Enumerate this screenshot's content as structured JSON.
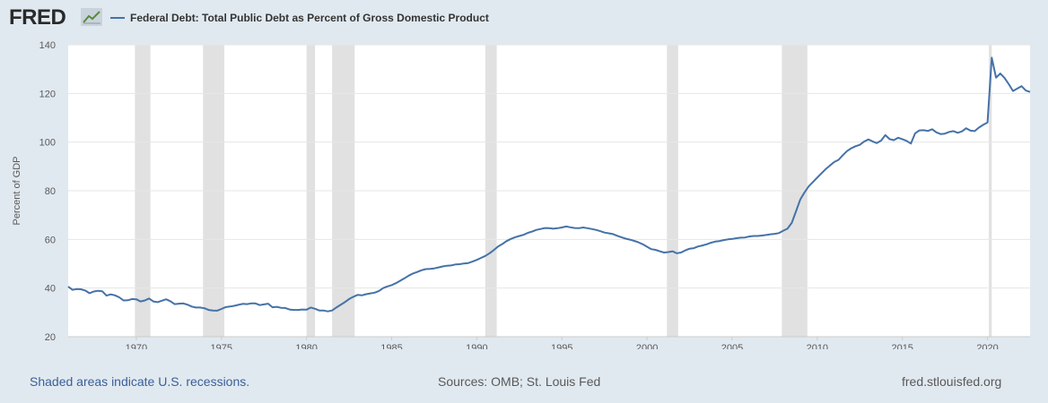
{
  "header": {
    "logo_text": "FRED",
    "logo_icon": "fred-trend-line-icon"
  },
  "chart_data": {
    "type": "line",
    "title": "",
    "xlabel": "",
    "ylabel": "Percent of GDP",
    "ylim": [
      20,
      140
    ],
    "xlim": [
      1966.0,
      2022.5
    ],
    "yticks": [
      20,
      40,
      60,
      80,
      100,
      120,
      140
    ],
    "xticks": [
      1970,
      1975,
      1980,
      1985,
      1990,
      1995,
      2000,
      2005,
      2010,
      2015,
      2020
    ],
    "grid": "horizontal",
    "legend_position": "top-left",
    "colors": {
      "line": "#4572a7",
      "recession": "#e1e1e1",
      "grid": "#e6e6e6",
      "plot_background": "#ffffff",
      "text": "#595959"
    },
    "recessions": [
      [
        1969.92,
        1970.83
      ],
      [
        1973.92,
        1975.17
      ],
      [
        1980.0,
        1980.5
      ],
      [
        1981.5,
        1982.83
      ],
      [
        1990.5,
        1991.17
      ],
      [
        2001.17,
        2001.83
      ],
      [
        2007.92,
        2009.42
      ],
      [
        2020.08,
        2020.25
      ]
    ],
    "series": [
      {
        "name": "Federal Debt: Total Public Debt as Percent of Gross Domestic Product",
        "x": [
          1966.0,
          1966.25,
          1966.5,
          1966.75,
          1967.0,
          1967.25,
          1967.5,
          1967.75,
          1968.0,
          1968.25,
          1968.5,
          1968.75,
          1969.0,
          1969.25,
          1969.5,
          1969.75,
          1970.0,
          1970.25,
          1970.5,
          1970.75,
          1971.0,
          1971.25,
          1971.5,
          1971.75,
          1972.0,
          1972.25,
          1972.5,
          1972.75,
          1973.0,
          1973.25,
          1973.5,
          1973.75,
          1974.0,
          1974.25,
          1974.5,
          1974.75,
          1975.0,
          1975.25,
          1975.5,
          1975.75,
          1976.0,
          1976.25,
          1976.5,
          1976.75,
          1977.0,
          1977.25,
          1977.5,
          1977.75,
          1978.0,
          1978.25,
          1978.5,
          1978.75,
          1979.0,
          1979.25,
          1979.5,
          1979.75,
          1980.0,
          1980.25,
          1980.5,
          1980.75,
          1981.0,
          1981.25,
          1981.5,
          1981.75,
          1982.0,
          1982.25,
          1982.5,
          1982.75,
          1983.0,
          1983.25,
          1983.5,
          1983.75,
          1984.0,
          1984.25,
          1984.5,
          1984.75,
          1985.0,
          1985.25,
          1985.5,
          1985.75,
          1986.0,
          1986.25,
          1986.5,
          1986.75,
          1987.0,
          1987.25,
          1987.5,
          1987.75,
          1988.0,
          1988.25,
          1988.5,
          1988.75,
          1989.0,
          1989.25,
          1989.5,
          1989.75,
          1990.0,
          1990.25,
          1990.5,
          1990.75,
          1991.0,
          1991.25,
          1991.5,
          1991.75,
          1992.0,
          1992.25,
          1992.5,
          1992.75,
          1993.0,
          1993.25,
          1993.5,
          1993.75,
          1994.0,
          1994.25,
          1994.5,
          1994.75,
          1995.0,
          1995.25,
          1995.5,
          1995.75,
          1996.0,
          1996.25,
          1996.5,
          1996.75,
          1997.0,
          1997.25,
          1997.5,
          1997.75,
          1998.0,
          1998.25,
          1998.5,
          1998.75,
          1999.0,
          1999.25,
          1999.5,
          1999.75,
          2000.0,
          2000.25,
          2000.5,
          2000.75,
          2001.0,
          2001.25,
          2001.5,
          2001.75,
          2002.0,
          2002.25,
          2002.5,
          2002.75,
          2003.0,
          2003.25,
          2003.5,
          2003.75,
          2004.0,
          2004.25,
          2004.5,
          2004.75,
          2005.0,
          2005.25,
          2005.5,
          2005.75,
          2006.0,
          2006.25,
          2006.5,
          2006.75,
          2007.0,
          2007.25,
          2007.5,
          2007.75,
          2008.0,
          2008.25,
          2008.5,
          2008.75,
          2009.0,
          2009.25,
          2009.5,
          2009.75,
          2010.0,
          2010.25,
          2010.5,
          2010.75,
          2011.0,
          2011.25,
          2011.5,
          2011.75,
          2012.0,
          2012.25,
          2012.5,
          2012.75,
          2013.0,
          2013.25,
          2013.5,
          2013.75,
          2014.0,
          2014.25,
          2014.5,
          2014.75,
          2015.0,
          2015.25,
          2015.5,
          2015.75,
          2016.0,
          2016.25,
          2016.5,
          2016.75,
          2017.0,
          2017.25,
          2017.5,
          2017.75,
          2018.0,
          2018.25,
          2018.5,
          2018.75,
          2019.0,
          2019.25,
          2019.5,
          2019.75,
          2020.0,
          2020.25,
          2020.5,
          2020.75,
          2021.0,
          2021.25,
          2021.5,
          2021.75,
          2022.0,
          2022.25,
          2022.5
        ],
        "values": [
          40.6,
          39.3,
          39.6,
          39.5,
          39.0,
          37.9,
          38.6,
          38.9,
          38.7,
          36.9,
          37.4,
          37.0,
          36.2,
          34.9,
          35.0,
          35.5,
          35.4,
          34.5,
          34.9,
          35.7,
          34.5,
          34.2,
          34.8,
          35.4,
          34.6,
          33.4,
          33.6,
          33.7,
          33.2,
          32.4,
          32.0,
          32.0,
          31.7,
          31.0,
          30.8,
          30.7,
          31.4,
          32.2,
          32.4,
          32.7,
          33.1,
          33.5,
          33.4,
          33.7,
          33.7,
          33.0,
          33.3,
          33.6,
          32.1,
          32.3,
          31.9,
          31.8,
          31.2,
          31.0,
          31.0,
          31.2,
          31.1,
          32.0,
          31.5,
          30.8,
          30.8,
          30.4,
          30.8,
          32.0,
          33.1,
          34.2,
          35.5,
          36.4,
          37.2,
          37.0,
          37.5,
          37.8,
          38.1,
          38.8,
          40.0,
          40.7,
          41.2,
          42.0,
          43.0,
          44.0,
          45.1,
          46.0,
          46.6,
          47.3,
          47.8,
          47.9,
          48.1,
          48.5,
          48.9,
          49.2,
          49.3,
          49.7,
          49.8,
          50.1,
          50.3,
          50.9,
          51.6,
          52.4,
          53.2,
          54.3,
          55.6,
          57.1,
          58.1,
          59.3,
          60.2,
          60.9,
          61.4,
          61.9,
          62.7,
          63.2,
          63.9,
          64.3,
          64.7,
          64.6,
          64.4,
          64.6,
          64.9,
          65.3,
          65.0,
          64.7,
          64.6,
          64.9,
          64.6,
          64.3,
          63.9,
          63.4,
          62.8,
          62.5,
          62.2,
          61.5,
          60.9,
          60.3,
          59.9,
          59.4,
          58.8,
          58.0,
          57.0,
          56.0,
          55.7,
          55.1,
          54.6,
          54.8,
          55.1,
          54.3,
          54.6,
          55.5,
          56.2,
          56.4,
          57.1,
          57.5,
          58.0,
          58.6,
          59.1,
          59.3,
          59.7,
          60.0,
          60.2,
          60.5,
          60.7,
          60.8,
          61.2,
          61.4,
          61.4,
          61.6,
          61.8,
          62.1,
          62.3,
          62.6,
          63.6,
          64.4,
          66.8,
          71.5,
          76.4,
          79.3,
          81.8,
          83.6,
          85.4,
          87.2,
          88.9,
          90.4,
          91.8,
          92.7,
          94.6,
          96.3,
          97.5,
          98.3,
          98.9,
          100.2,
          101.1,
          100.3,
          99.6,
          100.6,
          102.9,
          101.2,
          100.8,
          101.8,
          101.2,
          100.5,
          99.4,
          103.6,
          104.8,
          104.9,
          104.6,
          105.3,
          104.0,
          103.3,
          103.5,
          104.2,
          104.5,
          103.8,
          104.4,
          105.7,
          104.7,
          104.5,
          106.0,
          107.1,
          108.1,
          134.7,
          126.5,
          128.2,
          126.4,
          123.8,
          121.0,
          122.0,
          123.0,
          121.2,
          120.6
        ]
      }
    ]
  },
  "footer": {
    "note": "Shaded areas indicate U.S. recessions.",
    "sources": "Sources: OMB; St. Louis Fed",
    "site": "fred.stlouisfed.org"
  }
}
